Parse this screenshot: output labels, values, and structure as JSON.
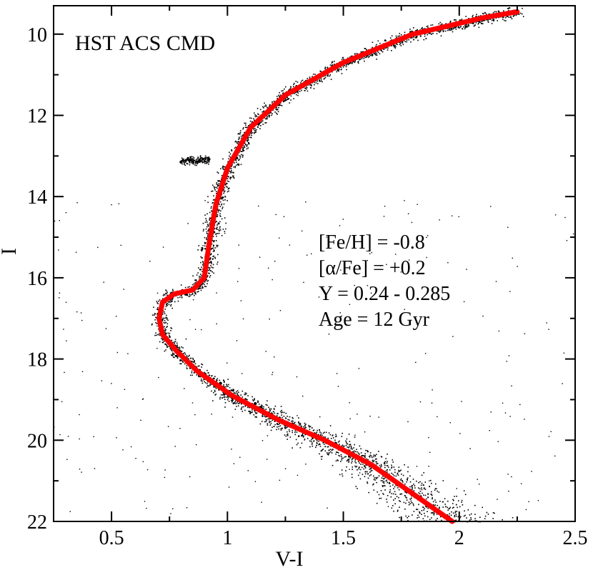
{
  "chart_data": {
    "type": "scatter",
    "title": "HST ACS CMD",
    "xlabel": "V-I",
    "ylabel": "I",
    "xlim": [
      0.25,
      2.5
    ],
    "ylim": [
      22,
      9.3
    ],
    "y_inverted": true,
    "x_ticks": [
      0.5,
      1,
      1.5,
      2,
      2.5
    ],
    "x_tick_labels": [
      "0.5",
      "1",
      "1.5",
      "2",
      "2.5"
    ],
    "y_ticks": [
      10,
      12,
      14,
      16,
      18,
      20,
      22
    ],
    "y_tick_labels": [
      "10",
      "12",
      "14",
      "16",
      "18",
      "20",
      "22"
    ],
    "grid": false,
    "annotations": [
      "[Fe/H] = -0.8",
      "[α/Fe] = +0.2",
      "Y = 0.24 - 0.285",
      "Age = 12 Gyr"
    ],
    "series": [
      {
        "name": "isochrone",
        "kind": "line",
        "color": "#ff0000",
        "x": [
          1.97,
          1.82,
          1.62,
          1.42,
          1.22,
          1.02,
          0.87,
          0.78,
          0.72,
          0.705,
          0.72,
          0.77,
          0.85,
          0.9,
          0.92,
          0.95,
          1.0,
          1.1,
          1.25,
          1.5,
          1.8,
          2.1,
          2.25
        ],
        "y": [
          22.0,
          21.4,
          20.6,
          20.0,
          19.5,
          18.9,
          18.3,
          17.8,
          17.4,
          17.0,
          16.6,
          16.4,
          16.3,
          16.0,
          15.2,
          14.2,
          13.3,
          12.3,
          11.5,
          10.7,
          10.0,
          9.6,
          9.45
        ]
      },
      {
        "name": "main sequence stars",
        "kind": "points",
        "color": "#000000",
        "x": [
          1.95,
          1.8,
          1.62,
          1.45,
          1.28,
          1.12,
          0.97,
          0.86,
          0.78,
          0.73,
          0.71,
          0.72,
          0.76
        ],
        "y": [
          21.9,
          21.3,
          20.6,
          20.1,
          19.6,
          19.1,
          18.6,
          18.2,
          17.8,
          17.4,
          17.0,
          16.7,
          16.5
        ]
      },
      {
        "name": "subgiant and red giant branch stars",
        "kind": "points",
        "color": "#000000",
        "x": [
          0.82,
          0.88,
          0.9,
          0.92,
          0.95,
          1.0,
          1.07,
          1.18,
          1.3
        ],
        "y": [
          16.4,
          16.2,
          15.8,
          15.0,
          14.1,
          13.3,
          12.5,
          11.9,
          11.4
        ]
      },
      {
        "name": "horizontal branch clump",
        "kind": "points",
        "color": "#000000",
        "x": [
          0.8,
          0.84,
          0.88,
          0.92
        ],
        "y": [
          13.15,
          13.1,
          13.12,
          13.08
        ]
      }
    ]
  }
}
